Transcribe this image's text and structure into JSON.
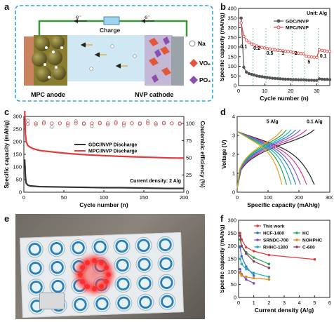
{
  "panel_labels": {
    "a": "a",
    "b": "b",
    "c": "c",
    "d": "d",
    "e": "e",
    "f": "f"
  },
  "schematic": {
    "charge_label": "Charge",
    "electron_left": "e⁻",
    "electron_right": "e⁻",
    "anode_label": "MPC anode",
    "cathode_label": "NVP cathode",
    "legend": [
      "Na",
      "VO₆",
      "PO₄"
    ],
    "colors": {
      "frame": "#2ea8e6",
      "wire": "#3a9a3a",
      "electrolyte": "#cfe8f3",
      "anode": "#6b6326",
      "cathode": "#9aa3a8",
      "na": "#ffffff",
      "vo6": "#e0573a",
      "po4": "#8a4fb0"
    }
  },
  "chart_data": [
    {
      "type": "line",
      "panel": "b",
      "ylabel": "Specific capacity (mAh/g)",
      "xlabel": "Cycle number (n)",
      "unit_note": "Unit:  A/g",
      "xlim": [
        0,
        35
      ],
      "ylim": [
        0,
        400
      ],
      "xticks": [
        0,
        10,
        20,
        30
      ],
      "yticks": [
        0,
        50,
        100,
        150,
        200,
        250,
        300,
        350,
        400
      ],
      "rate_labels": [
        {
          "text": "0.1",
          "x": 2,
          "y": 195
        },
        {
          "text": "0.2",
          "x": 7,
          "y": 185
        },
        {
          "text": "0.5",
          "x": 12,
          "y": 160
        },
        {
          "text": "1",
          "x": 17,
          "y": 160
        },
        {
          "text": "2",
          "x": 22,
          "y": 160
        },
        {
          "text": "5",
          "x": 27,
          "y": 115
        },
        {
          "text": "0.1",
          "x": 32.5,
          "y": 145
        }
      ],
      "series": [
        {
          "name": "GDC//NVP",
          "color": "#555555",
          "x": [
            1,
            2,
            3,
            4,
            5,
            6,
            7,
            8,
            9,
            10,
            11,
            12,
            13,
            14,
            15,
            16,
            17,
            18,
            19,
            20,
            21,
            22,
            23,
            24,
            25,
            26,
            27,
            28,
            29,
            30,
            31,
            32,
            33,
            34,
            35
          ],
          "y": [
            350,
            95,
            70,
            62,
            58,
            55,
            50,
            48,
            46,
            44,
            42,
            40,
            38,
            37,
            36,
            35,
            34,
            33,
            33,
            32,
            31,
            31,
            30,
            30,
            30,
            29,
            28,
            28,
            27,
            27,
            35,
            33,
            32,
            32,
            31
          ]
        },
        {
          "name": "MPC//NVP",
          "color": "#e23b3b",
          "x": [
            1,
            2,
            3,
            4,
            5,
            6,
            7,
            8,
            9,
            10,
            11,
            12,
            13,
            14,
            15,
            16,
            17,
            18,
            19,
            20,
            21,
            22,
            23,
            24,
            25,
            26,
            27,
            28,
            29,
            30,
            31,
            32,
            33,
            34,
            35
          ],
          "y": [
            325,
            255,
            235,
            225,
            215,
            210,
            205,
            200,
            198,
            195,
            192,
            190,
            188,
            185,
            183,
            182,
            180,
            178,
            177,
            175,
            172,
            170,
            168,
            166,
            165,
            152,
            150,
            148,
            147,
            146,
            185,
            182,
            180,
            178,
            178
          ]
        }
      ]
    },
    {
      "type": "line",
      "panel": "c",
      "ylabel": "Specific capacity (mAh/g)",
      "y2label": "Coulombic efficiency (%)",
      "xlabel": "Cycle number (n)",
      "annotation": "Current density: 2 A/g",
      "xlim": [
        0,
        200
      ],
      "ylim": [
        0,
        300
      ],
      "y2lim": [
        0,
        110
      ],
      "xticks": [
        0,
        50,
        100,
        150,
        200
      ],
      "yticks": [
        0,
        50,
        100,
        150,
        200,
        250,
        300
      ],
      "y2ticks": [
        0,
        25,
        50,
        75,
        100
      ],
      "series": [
        {
          "name": "GDC//NVP Discharge",
          "color": "#333333",
          "x": [
            1,
            2,
            3,
            5,
            8,
            12,
            20,
            40,
            60,
            80,
            100,
            120,
            140,
            160,
            180,
            200
          ],
          "y": [
            130,
            60,
            35,
            28,
            25,
            24,
            22,
            21,
            20,
            19,
            18,
            18,
            17,
            16,
            15,
            15
          ]
        },
        {
          "name": "MPC//NVP Discharge",
          "color": "#e23b3b",
          "x": [
            1,
            2,
            3,
            5,
            8,
            12,
            20,
            40,
            60,
            80,
            100,
            120,
            140,
            160,
            180,
            200
          ],
          "y": [
            330,
            230,
            200,
            185,
            178,
            172,
            165,
            158,
            152,
            148,
            145,
            142,
            140,
            138,
            136,
            135
          ]
        },
        {
          "name": "GDC//NVP CE",
          "color": "#888888",
          "axis": "right",
          "style": "open-circle",
          "x": [
            5,
            15,
            25,
            35,
            45,
            55,
            65,
            75,
            85,
            95,
            105,
            115,
            125,
            135,
            145,
            155,
            165,
            175,
            185,
            195
          ],
          "y": [
            104,
            98,
            102,
            95,
            100,
            97,
            103,
            99,
            96,
            101,
            98,
            102,
            97,
            100,
            99,
            103,
            98,
            101,
            100,
            99
          ]
        },
        {
          "name": "MPC//NVP CE",
          "color": "#e23b3b",
          "axis": "right",
          "style": "open-circle",
          "x": [
            5,
            15,
            25,
            35,
            45,
            55,
            65,
            75,
            85,
            95,
            105,
            115,
            125,
            135,
            145,
            155,
            165,
            175,
            185,
            195
          ],
          "y": [
            99,
            100,
            100,
            100,
            100,
            100,
            100,
            100,
            100,
            100,
            100,
            100,
            100,
            100,
            100,
            100,
            100,
            100,
            100,
            100
          ]
        }
      ]
    },
    {
      "type": "line",
      "panel": "d",
      "ylabel": "Voltage (V)",
      "xlabel": "Specific capacity (mAh/g)",
      "xlim": [
        0,
        300
      ],
      "ylim": [
        0,
        4
      ],
      "xticks": [
        0,
        100,
        200,
        300
      ],
      "yticks": [
        0,
        1,
        2,
        3,
        4
      ],
      "annotations": [
        "5 A/g",
        "0.1 A/g"
      ],
      "capacities": [
        250,
        225,
        205,
        190,
        175,
        160,
        145
      ],
      "colors": [
        "#222222",
        "#d43f8d",
        "#8e5bd0",
        "#2f7fd6",
        "#22b0b0",
        "#2aa84a",
        "#e0a31f"
      ]
    },
    {
      "type": "line",
      "panel": "f",
      "ylabel": "Specific capacity (mAh/g)",
      "xlabel": "Current density (A/g)",
      "xlim": [
        0,
        6
      ],
      "ylim": [
        0,
        300
      ],
      "xticks": [
        0,
        1,
        2,
        3,
        4,
        5,
        6
      ],
      "yticks": [
        0,
        50,
        100,
        150,
        200,
        250,
        300
      ],
      "series": [
        {
          "name": "This work",
          "color": "#e23b3b",
          "x": [
            0.1,
            0.2,
            0.5,
            1,
            2,
            5
          ],
          "y": [
            250,
            225,
            195,
            180,
            165,
            148
          ]
        },
        {
          "name": "HCF-1400",
          "color": "#2f6fd6",
          "x": [
            0.1,
            0.2,
            0.5,
            1
          ],
          "y": [
            195,
            160,
            120,
            85
          ]
        },
        {
          "name": "HC",
          "color": "#2aa84a",
          "x": [
            0.1,
            0.2,
            0.5,
            1,
            2
          ],
          "y": [
            225,
            200,
            175,
            155,
            130
          ]
        },
        {
          "name": "SRNDC-700",
          "color": "#7a4fc0",
          "x": [
            0.1,
            0.2,
            0.5,
            1
          ],
          "y": [
            110,
            90,
            70,
            55
          ]
        },
        {
          "name": "NOHPHC",
          "color": "#e08a1f",
          "x": [
            0.1,
            0.2,
            0.5,
            1,
            2
          ],
          "y": [
            95,
            85,
            80,
            75,
            70
          ]
        },
        {
          "name": "RHHC-1300",
          "color": "#22b0b0",
          "x": [
            0.1,
            0.2,
            0.5,
            1,
            2
          ],
          "y": [
            150,
            130,
            110,
            95,
            80
          ]
        },
        {
          "name": "C-600",
          "color": "#8a3a5a",
          "x": [
            0.1,
            0.2,
            0.5,
            1,
            2
          ],
          "y": [
            240,
            200,
            170,
            140,
            115
          ]
        }
      ]
    }
  ]
}
